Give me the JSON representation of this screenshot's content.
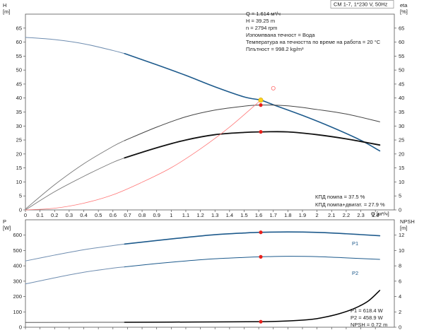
{
  "chart_data": [
    {
      "type": "line",
      "badge": "CM 1-7, 1*230 V, 50Hz",
      "left_axis": {
        "symbol": "H",
        "unit": "[m]",
        "ylim": [
          0,
          70
        ],
        "ticks": [
          0,
          5,
          10,
          15,
          20,
          25,
          30,
          35,
          40,
          45,
          50,
          55,
          60,
          65
        ]
      },
      "right_axis": {
        "symbol": "eta",
        "unit": "[%]",
        "ylim": [
          0,
          70
        ],
        "ticks": [
          0,
          5,
          10,
          15,
          20,
          25,
          30,
          35,
          40,
          45,
          50,
          55,
          60,
          65
        ]
      },
      "x_axis": {
        "label": "Q [м³/ч]",
        "xlim": [
          0,
          2.53
        ],
        "ticks": [
          0,
          0.1,
          0.2,
          0.3,
          0.4,
          0.5,
          0.6,
          0.7,
          0.8,
          0.9,
          1,
          1.1,
          1.2,
          1.3,
          1.4,
          1.5,
          1.6,
          1.7,
          1.8,
          1.9,
          2,
          2.1,
          2.2,
          2.3,
          2.4
        ],
        "tick_labels": [
          "0",
          "0.1",
          "0.2",
          "0.3",
          "0.4",
          "0.5",
          "0.6",
          "0.7",
          "0.8",
          "0.9",
          "1",
          "1.1",
          "1.2",
          "1.3",
          "1.4",
          "1.5",
          "1.6",
          "1.7",
          "1.8",
          "1.9",
          "2",
          "2.1",
          "2.2",
          "2.3",
          "2.4"
        ]
      },
      "info_lines": [
        "Q = 1.614 м³/ч",
        "H = 39.25 m",
        "n = 2794 rpm",
        "Изпомпвана течност = Вода",
        "Температура на течността по време на работа = 20 °C",
        "Плътност = 998.2 kg/m³"
      ],
      "eta_labels": [
        "КПД помпа = 37.5 %",
        "КПД помпа+двигат. = 27.9 %"
      ],
      "series": [
        {
          "id": "H_full",
          "axis": "left",
          "color": "#6f8db0",
          "width": 1.0,
          "x": [
            0,
            0.2,
            0.4,
            0.6,
            0.68
          ],
          "y": [
            61.7,
            60.9,
            59.4,
            57.0,
            55.9
          ]
        },
        {
          "id": "H",
          "axis": "left",
          "color": "#1d5a8c",
          "width": 1.6,
          "x": [
            0.68,
            0.9,
            1.1,
            1.3,
            1.5,
            1.614,
            1.7,
            1.9,
            2.1,
            2.3,
            2.43
          ],
          "y": [
            55.9,
            51.9,
            48.1,
            44.0,
            40.4,
            39.25,
            37.6,
            33.8,
            29.6,
            24.9,
            21.1
          ]
        },
        {
          "id": "eta_pump_full",
          "axis": "right",
          "color": "#777777",
          "width": 0.9,
          "x": [
            0,
            0.2,
            0.4,
            0.6,
            0.68
          ],
          "y": [
            0.3,
            9.0,
            16.5,
            22.7,
            24.8
          ]
        },
        {
          "id": "eta_pump",
          "axis": "right",
          "color": "#444444",
          "width": 1.0,
          "x": [
            0.68,
            0.9,
            1.1,
            1.3,
            1.5,
            1.614,
            1.8,
            2.0,
            2.2,
            2.43
          ],
          "y": [
            24.8,
            29.6,
            33.3,
            35.7,
            37.1,
            37.5,
            37.2,
            35.9,
            34.3,
            31.5
          ]
        },
        {
          "id": "eta_total_full",
          "axis": "right",
          "color": "#777777",
          "width": 0.9,
          "x": [
            0,
            0.2,
            0.4,
            0.6,
            0.68
          ],
          "y": [
            0,
            6.5,
            12.0,
            17.0,
            18.6
          ]
        },
        {
          "id": "eta_total",
          "axis": "right",
          "color": "#111111",
          "width": 1.8,
          "x": [
            0.68,
            0.9,
            1.1,
            1.3,
            1.5,
            1.614,
            1.8,
            2.0,
            2.2,
            2.43
          ],
          "y": [
            18.6,
            22.2,
            25.0,
            26.9,
            27.7,
            27.9,
            27.9,
            26.9,
            25.4,
            23.2
          ]
        },
        {
          "id": "system",
          "axis": "left",
          "color": "#ff7777",
          "width": 0.8,
          "x": [
            0,
            0.2,
            0.4,
            0.6,
            0.8,
            1.0,
            1.2,
            1.4,
            1.614
          ],
          "y": [
            0,
            0.6,
            2.4,
            5.4,
            9.9,
            15.1,
            21.8,
            29.6,
            39.25
          ]
        }
      ],
      "points": [
        {
          "x": 1.614,
          "y": 39.25,
          "axis": "left",
          "kind": "duty"
        },
        {
          "x": 1.614,
          "y": 37.5,
          "axis": "right",
          "kind": "red"
        },
        {
          "x": 1.614,
          "y": 27.9,
          "axis": "right",
          "kind": "red"
        },
        {
          "x": 1.7,
          "y": 43.5,
          "axis": "left",
          "kind": "open"
        }
      ]
    },
    {
      "type": "line",
      "left_axis": {
        "symbol": "P",
        "unit": "[W]",
        "ylim": [
          0,
          700
        ],
        "ticks": [
          0,
          100,
          200,
          300,
          400,
          500,
          600
        ]
      },
      "right_axis": {
        "symbol": "NPSH",
        "unit": "[m]",
        "ylim": [
          0,
          14
        ],
        "ticks": [
          0,
          2,
          4,
          6,
          8,
          10,
          12
        ]
      },
      "info_lines": [
        "P1 = 618.4 W",
        "P2 = 458.9 W",
        "NPSH = 0.72 m"
      ],
      "series": [
        {
          "id": "P1_full",
          "axis": "left",
          "color": "#6f8db0",
          "width": 1.0,
          "x": [
            0,
            0.2,
            0.4,
            0.6,
            0.68
          ],
          "y": [
            432,
            470,
            505,
            532,
            542
          ]
        },
        {
          "id": "P1",
          "name": "P1",
          "axis": "left",
          "color": "#1d5a8c",
          "width": 1.6,
          "x": [
            0.68,
            0.9,
            1.1,
            1.3,
            1.5,
            1.614,
            1.8,
            2.0,
            2.2,
            2.43
          ],
          "y": [
            542,
            565,
            585,
            603,
            614,
            618.4,
            621,
            618,
            609,
            596
          ]
        },
        {
          "id": "P2_full",
          "axis": "left",
          "color": "#6f8db0",
          "width": 1.0,
          "x": [
            0,
            0.2,
            0.4,
            0.6,
            0.68
          ],
          "y": [
            282,
            322,
            358,
            385,
            393
          ]
        },
        {
          "id": "P2",
          "name": "P2",
          "axis": "left",
          "color": "#1d5a8c",
          "width": 1.0,
          "x": [
            0.68,
            0.9,
            1.1,
            1.3,
            1.5,
            1.614,
            1.8,
            2.0,
            2.2,
            2.43
          ],
          "y": [
            393,
            415,
            432,
            446,
            455,
            458.9,
            462,
            460,
            452,
            442
          ]
        },
        {
          "id": "NPSH_full",
          "axis": "right",
          "color": "#555555",
          "width": 1.0,
          "x": [
            0,
            0.68
          ],
          "y": [
            0.62,
            0.65
          ]
        },
        {
          "id": "NPSH",
          "axis": "right",
          "color": "#000000",
          "width": 1.5,
          "x": [
            0.68,
            1.0,
            1.3,
            1.614,
            1.8,
            1.95,
            2.05,
            2.15,
            2.25,
            2.35,
            2.43
          ],
          "y": [
            0.65,
            0.67,
            0.69,
            0.72,
            0.82,
            1.0,
            1.3,
            1.75,
            2.4,
            3.4,
            4.8
          ]
        }
      ],
      "points": [
        {
          "x": 1.614,
          "y": 618.4,
          "axis": "left",
          "kind": "red"
        },
        {
          "x": 1.614,
          "y": 458.9,
          "axis": "left",
          "kind": "red"
        },
        {
          "x": 1.614,
          "y": 0.72,
          "axis": "right",
          "kind": "red"
        }
      ]
    }
  ]
}
